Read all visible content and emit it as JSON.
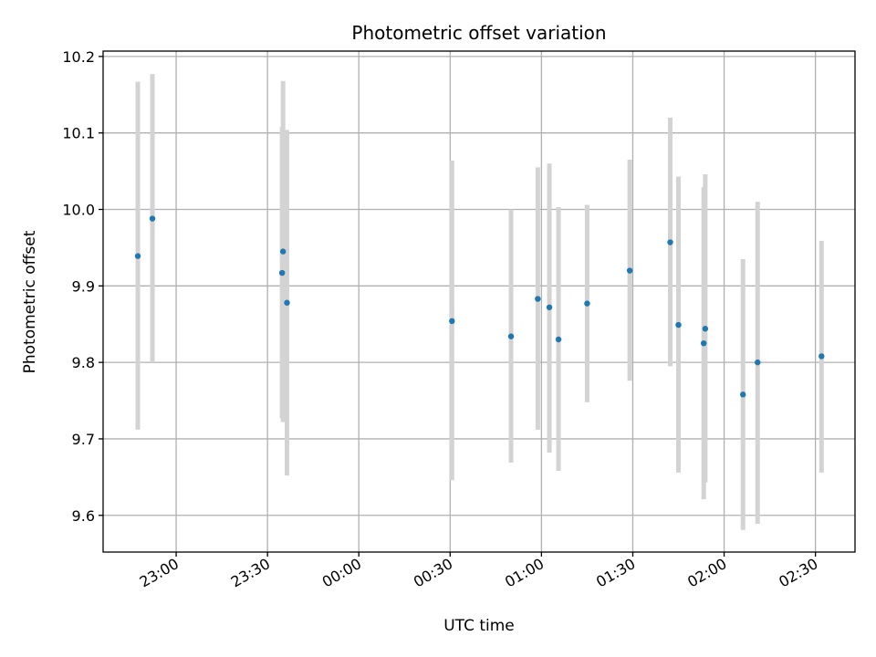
{
  "chart_data": {
    "type": "scatter",
    "title": "Photometric offset variation",
    "xlabel": "UTC time",
    "ylabel": "Photometric offset",
    "x_tick_labels": [
      "23:00",
      "23:30",
      "00:00",
      "00:30",
      "01:00",
      "01:30",
      "02:00",
      "02:30"
    ],
    "x_tick_minutes": [
      1380,
      1410,
      1440,
      1470,
      1500,
      1530,
      1560,
      1590
    ],
    "y_ticks": [
      9.6,
      9.7,
      9.8,
      9.9,
      10.0,
      10.1,
      10.2
    ],
    "y_tick_labels": [
      "9.6",
      "9.7",
      "9.8",
      "9.9",
      "10.0",
      "10.1",
      "10.2"
    ],
    "xlim_minutes": [
      1356,
      1603
    ],
    "ylim": [
      9.552,
      10.207
    ],
    "grid": true,
    "marker_color": "#1f77b4",
    "errorbar_color": "#d3d3d3",
    "points": [
      {
        "t": 1367.4,
        "y": 9.939,
        "lo": 9.712,
        "hi": 10.167
      },
      {
        "t": 1372.2,
        "y": 9.988,
        "lo": 9.8,
        "hi": 10.177
      },
      {
        "t": 1414.8,
        "y": 9.917,
        "lo": 9.727,
        "hi": 10.108
      },
      {
        "t": 1415.1,
        "y": 9.945,
        "lo": 9.722,
        "hi": 10.168
      },
      {
        "t": 1416.4,
        "y": 9.878,
        "lo": 9.652,
        "hi": 10.104
      },
      {
        "t": 1470.6,
        "y": 9.854,
        "lo": 9.646,
        "hi": 10.064
      },
      {
        "t": 1490.0,
        "y": 9.834,
        "lo": 9.669,
        "hi": 10.0
      },
      {
        "t": 1498.8,
        "y": 9.883,
        "lo": 9.712,
        "hi": 10.055
      },
      {
        "t": 1502.6,
        "y": 9.872,
        "lo": 9.682,
        "hi": 10.06
      },
      {
        "t": 1505.6,
        "y": 9.83,
        "lo": 9.658,
        "hi": 10.003
      },
      {
        "t": 1515.0,
        "y": 9.877,
        "lo": 9.748,
        "hi": 10.006
      },
      {
        "t": 1529.0,
        "y": 9.92,
        "lo": 9.776,
        "hi": 10.065
      },
      {
        "t": 1542.3,
        "y": 9.957,
        "lo": 9.795,
        "hi": 10.12
      },
      {
        "t": 1545.0,
        "y": 9.849,
        "lo": 9.656,
        "hi": 10.043
      },
      {
        "t": 1553.3,
        "y": 9.825,
        "lo": 9.621,
        "hi": 10.029
      },
      {
        "t": 1553.8,
        "y": 9.844,
        "lo": 9.643,
        "hi": 10.046
      },
      {
        "t": 1566.2,
        "y": 9.758,
        "lo": 9.581,
        "hi": 9.935
      },
      {
        "t": 1571.0,
        "y": 9.8,
        "lo": 9.589,
        "hi": 10.01
      },
      {
        "t": 1592.0,
        "y": 9.808,
        "lo": 9.656,
        "hi": 9.959
      }
    ]
  }
}
